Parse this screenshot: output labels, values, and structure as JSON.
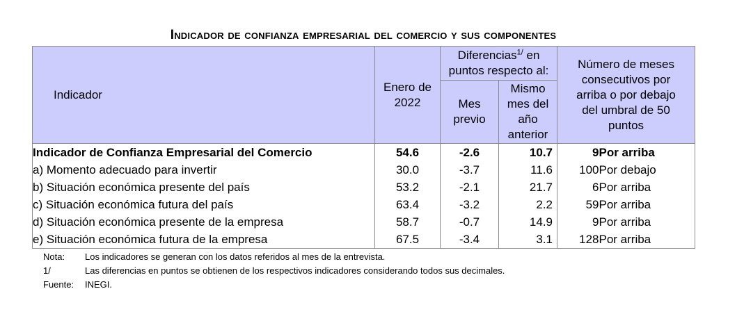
{
  "title": "Indicador de confianza empresarial del comercio y sus componentes",
  "headers": {
    "indicator": "Indicador",
    "period": "Enero de 2022",
    "diff_group_a": "Diferencias",
    "diff_group_sup": "1/",
    "diff_group_b": " en puntos respecto al:",
    "prev_month": "Mes previo",
    "same_month_prev_year": "Mismo mes del año anterior",
    "months_consecutive": "Número de meses consecutivos por arriba o por debajo del umbral de 50 puntos"
  },
  "rows": [
    {
      "name": "Indicador de Confianza Empresarial del Comercio",
      "value": "54.6",
      "diff_prev": "-2.6",
      "diff_year": "10.7",
      "months": "9",
      "direction": "Por arriba"
    },
    {
      "name": "a)  Momento adecuado para invertir",
      "value": "30.0",
      "diff_prev": "-3.7",
      "diff_year": "11.6",
      "months": "100",
      "direction": "Por debajo"
    },
    {
      "name": "b)  Situación económica presente del país",
      "value": "53.2",
      "diff_prev": "-2.1",
      "diff_year": "21.7",
      "months": "6",
      "direction": "Por arriba"
    },
    {
      "name": "c)  Situación económica futura del país",
      "value": "63.4",
      "diff_prev": "-3.2",
      "diff_year": "2.2",
      "months": "59",
      "direction": "Por arriba"
    },
    {
      "name": "d)  Situación económica presente de la empresa",
      "value": "58.7",
      "diff_prev": "-0.7",
      "diff_year": "14.9",
      "months": "9",
      "direction": "Por arriba"
    },
    {
      "name": "e)  Situación económica futura de la empresa",
      "value": "67.5",
      "diff_prev": "-3.4",
      "diff_year": "3.1",
      "months": "128",
      "direction": "Por arriba"
    }
  ],
  "notes": [
    {
      "label": "Nota:",
      "text": "Los indicadores se generan con los datos referidos al mes de la entrevista."
    },
    {
      "label": "1/",
      "text": "Las diferencias en puntos se obtienen de los respectivos indicadores considerando todos sus decimales."
    },
    {
      "label": "Fuente:",
      "text": "INEGI."
    }
  ]
}
